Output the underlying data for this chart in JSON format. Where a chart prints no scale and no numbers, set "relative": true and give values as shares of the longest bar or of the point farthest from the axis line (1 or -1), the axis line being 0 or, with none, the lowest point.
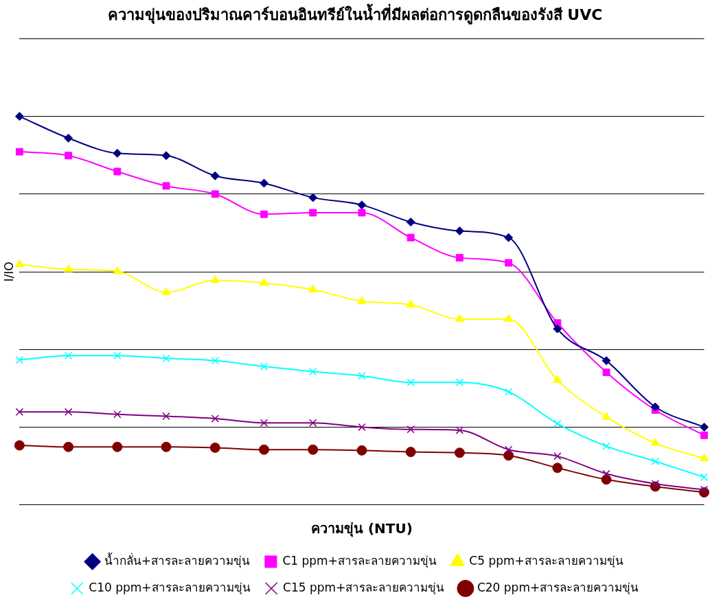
{
  "chart_data": {
    "type": "line",
    "title": "ความขุ่นของปริมาณคาร์บอนอินทรีย์ในน้ำที่มีผลต่อการดูดกลืนของรังสี UVC",
    "xlabel": "ความขุ่น (NTU)",
    "ylabel": "I/IO",
    "relative": true,
    "grid": "y",
    "legend": "bottom",
    "categories": [
      null,
      null,
      null,
      null,
      null,
      null,
      null,
      null,
      null,
      null,
      null,
      null,
      null,
      null,
      null
    ],
    "series": [
      {
        "name": "น้ำกลั่น+สารละลายความขุ่น",
        "color": "#000080",
        "marker": "diamond",
        "values": [
          1.0,
          0.944,
          0.905,
          0.899,
          0.847,
          0.828,
          0.791,
          0.772,
          0.728,
          0.705,
          0.688,
          0.453,
          0.371,
          0.252,
          0.2
        ]
      },
      {
        "name": "C1 ppm+สารละลายความขุ่น",
        "color": "#ff00ff",
        "marker": "square",
        "values": [
          0.909,
          0.899,
          0.858,
          0.821,
          0.8,
          0.748,
          0.752,
          0.752,
          0.688,
          0.636,
          0.623,
          0.468,
          0.341,
          0.244,
          0.179
        ]
      },
      {
        "name": "C5 ppm+สารละลายความขุ่น",
        "color": "#ffff00",
        "marker": "triangle",
        "values": [
          0.619,
          0.606,
          0.601,
          0.547,
          0.578,
          0.571,
          0.554,
          0.524,
          0.515,
          0.478,
          0.478,
          0.321,
          0.226,
          0.159,
          0.119
        ]
      },
      {
        "name": "C10 ppm+สารละลายความขุ่น",
        "color": "#00ffff",
        "marker": "cross",
        "values": [
          0.373,
          0.384,
          0.384,
          0.377,
          0.371,
          0.356,
          0.343,
          0.332,
          0.315,
          0.315,
          0.291,
          0.209,
          0.151,
          0.112,
          0.071
        ]
      },
      {
        "name": "C15 ppm+สารละลายความขุ่น",
        "color": "#800080",
        "marker": "cross",
        "values": [
          0.239,
          0.239,
          0.233,
          0.228,
          0.222,
          0.211,
          0.211,
          0.2,
          0.194,
          0.192,
          0.142,
          0.125,
          0.08,
          0.054,
          0.039
        ]
      },
      {
        "name": "C20 ppm+สารละลายความขุ่น",
        "color": "#800000",
        "marker": "circle",
        "values": [
          0.153,
          0.149,
          0.149,
          0.149,
          0.147,
          0.142,
          0.142,
          0.14,
          0.136,
          0.134,
          0.127,
          0.095,
          0.065,
          0.047,
          0.032
        ]
      }
    ]
  }
}
